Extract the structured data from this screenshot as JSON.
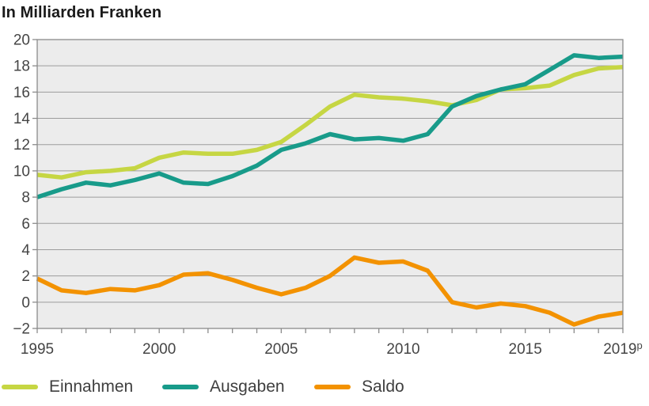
{
  "title": "In Milliarden Franken",
  "chart_data": {
    "type": "line",
    "title": "In Milliarden Franken",
    "xlabel": "",
    "ylabel": "In Milliarden Franken",
    "ylim": [
      -2,
      20
    ],
    "ytick_step": 2,
    "grid": true,
    "legend_position": "bottom",
    "plot_bg": "#ececec",
    "grid_color": "#9c9c9c",
    "border_color": "#8b8b8b",
    "tick_text_color": "#454545",
    "x": [
      1995,
      1996,
      1997,
      1998,
      1999,
      2000,
      2001,
      2002,
      2003,
      2004,
      2005,
      2006,
      2007,
      2008,
      2009,
      2010,
      2011,
      2012,
      2013,
      2014,
      2015,
      2016,
      2017,
      2018,
      2019
    ],
    "series": [
      {
        "name": "Einnahmen",
        "color": "#c6d643",
        "values": [
          9.7,
          9.5,
          9.9,
          10.0,
          10.2,
          11.0,
          11.4,
          11.3,
          11.3,
          11.6,
          12.2,
          13.5,
          14.9,
          15.8,
          15.6,
          15.5,
          15.3,
          15.0,
          15.4,
          16.2,
          16.3,
          16.5,
          17.3,
          17.8,
          17.9
        ]
      },
      {
        "name": "Ausgaben",
        "color": "#189b8a",
        "values": [
          8.0,
          8.6,
          9.1,
          8.9,
          9.3,
          9.8,
          9.1,
          9.0,
          9.6,
          10.4,
          11.6,
          12.1,
          12.8,
          12.4,
          12.5,
          12.3,
          12.8,
          14.9,
          15.7,
          16.2,
          16.6,
          17.7,
          18.8,
          18.6,
          18.7
        ]
      },
      {
        "name": "Saldo",
        "color": "#f39200",
        "values": [
          1.8,
          0.9,
          0.7,
          1.0,
          0.9,
          1.3,
          2.1,
          2.2,
          1.7,
          1.1,
          0.6,
          1.1,
          2.0,
          3.4,
          3.0,
          3.1,
          2.4,
          0.0,
          -0.4,
          -0.1,
          -0.3,
          -0.8,
          -1.7,
          -1.1,
          -0.8
        ]
      }
    ],
    "y_ticks": [
      {
        "v": 20,
        "label": "20"
      },
      {
        "v": 18,
        "label": "18"
      },
      {
        "v": 16,
        "label": "16"
      },
      {
        "v": 14,
        "label": "14"
      },
      {
        "v": 12,
        "label": "12"
      },
      {
        "v": 10,
        "label": "10"
      },
      {
        "v": 8,
        "label": "8"
      },
      {
        "v": 6,
        "label": "6"
      },
      {
        "v": 4,
        "label": "4"
      },
      {
        "v": 2,
        "label": "2"
      },
      {
        "v": 0,
        "label": "0"
      },
      {
        "v": -2,
        "label": "−2"
      }
    ],
    "x_ticks": [
      {
        "year": 1995,
        "label": "1995"
      },
      {
        "year": 2000,
        "label": "2000"
      },
      {
        "year": 2005,
        "label": "2005"
      },
      {
        "year": 2010,
        "label": "2010"
      },
      {
        "year": 2015,
        "label": "2015"
      },
      {
        "year": 2019,
        "label": "2019",
        "sup": "p"
      }
    ]
  }
}
